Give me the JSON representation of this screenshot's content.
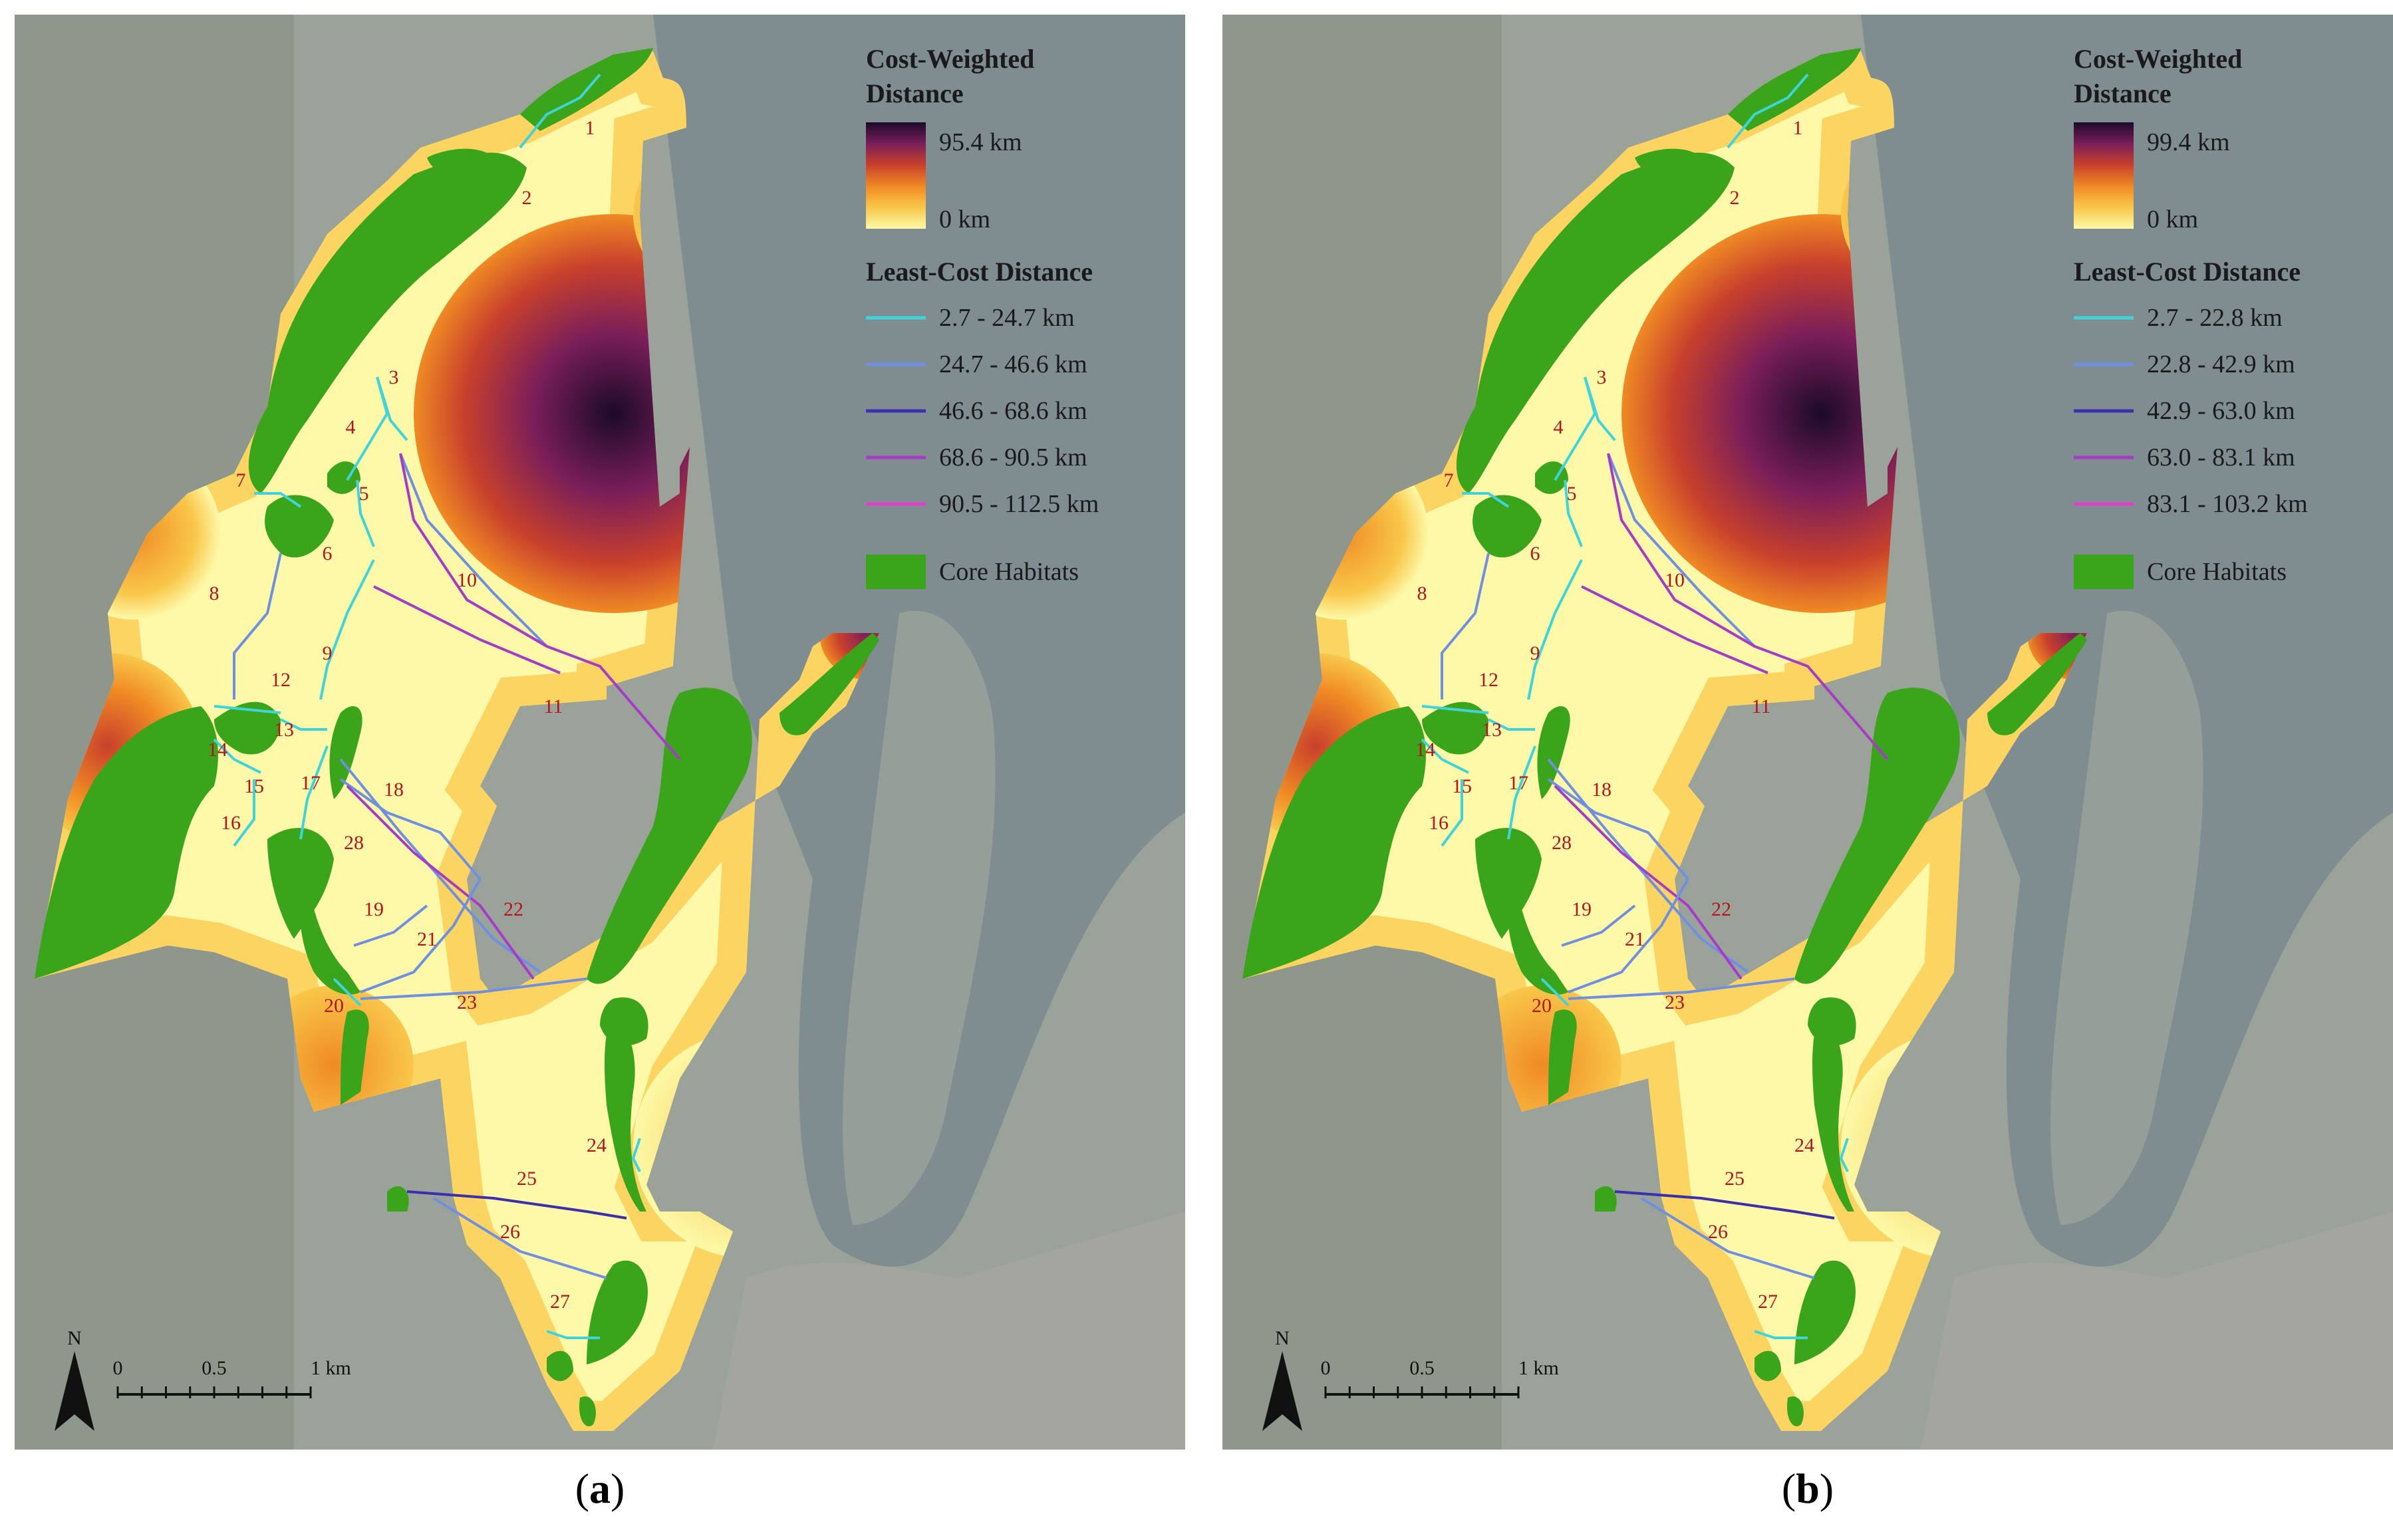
{
  "panels": [
    {
      "id": "a",
      "caption_open": "(",
      "caption_letter": "a",
      "caption_close": ")",
      "legend": {
        "cwd_title_line1": "Cost-Weighted",
        "cwd_title_line2": "Distance",
        "cwd_max": "95.4 km",
        "cwd_min": "0 km",
        "lcd_title": "Least-Cost Distance",
        "classes": [
          "2.7 - 24.7 km",
          "24.7 - 46.6 km",
          "46.6 - 68.6 km",
          "68.6 - 90.5 km",
          "90.5 - 112.5 km"
        ],
        "core_label": "Core Habitats"
      }
    },
    {
      "id": "b",
      "caption_open": "(",
      "caption_letter": "b",
      "caption_close": ")",
      "legend": {
        "cwd_title_line1": "Cost-Weighted",
        "cwd_title_line2": "Distance",
        "cwd_max": "99.4 km",
        "cwd_min": "0 km",
        "lcd_title": "Least-Cost Distance",
        "classes": [
          "2.7 - 22.8 km",
          "22.8 - 42.9 km",
          "42.9 - 63.0 km",
          "63.0 - 83.1 km",
          "83.1 - 103.2 km"
        ],
        "core_label": "Core Habitats"
      }
    }
  ],
  "class_colors": [
    "#3fd4dc",
    "#6f8fe0",
    "#3b2fae",
    "#a63bc8",
    "#e040c8"
  ],
  "core_color": "#3aa41a",
  "cwd_ramp": [
    "#fdf9a8",
    "#f9c74a",
    "#f08a24",
    "#c8402c",
    "#7a1e5a",
    "#1b0a28"
  ],
  "route_labels": [
    "1",
    "2",
    "3",
    "4",
    "5",
    "6",
    "7",
    "8",
    "9",
    "10",
    "11",
    "12",
    "13",
    "14",
    "15",
    "16",
    "17",
    "18",
    "19",
    "20",
    "21",
    "22",
    "23",
    "24",
    "25",
    "26",
    "27",
    "28"
  ],
  "scale": {
    "north": "N",
    "ticks": [
      "0",
      "0.5",
      "1 km"
    ]
  }
}
